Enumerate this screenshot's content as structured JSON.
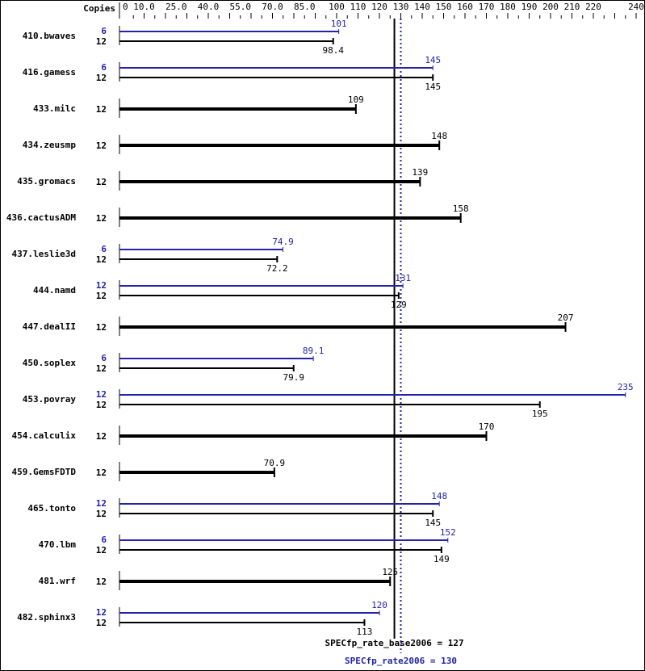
{
  "chart_data": {
    "type": "bar",
    "orientation": "horizontal",
    "axis_header": "Copies",
    "xlim": [
      0,
      240
    ],
    "ticks": [
      0,
      10.0,
      25.0,
      40.0,
      55.0,
      70.0,
      85.0,
      100,
      110,
      120,
      130,
      140,
      150,
      160,
      170,
      180,
      190,
      200,
      210,
      220,
      240
    ],
    "tick_labels": [
      "0",
      "10.0",
      "25.0",
      "40.0",
      "55.0",
      "70.0",
      "85.0",
      "100",
      "110",
      "120",
      "130",
      "140",
      "150",
      "160",
      "170",
      "180",
      "190",
      "200",
      "210",
      "220",
      "240"
    ],
    "colors": {
      "base": "#000000",
      "peak": "#2222aa"
    },
    "benchmarks": [
      {
        "name": "410.bwaves",
        "peak_copies": "6",
        "peak": 101,
        "base_copies": "12",
        "base": 98.4
      },
      {
        "name": "416.gamess",
        "peak_copies": "6",
        "peak": 145,
        "base_copies": "12",
        "base": 145
      },
      {
        "name": "433.milc",
        "base_copies": "12",
        "base": 109
      },
      {
        "name": "434.zeusmp",
        "base_copies": "12",
        "base": 148
      },
      {
        "name": "435.gromacs",
        "base_copies": "12",
        "base": 139
      },
      {
        "name": "436.cactusADM",
        "base_copies": "12",
        "base": 158
      },
      {
        "name": "437.leslie3d",
        "peak_copies": "6",
        "peak": 74.9,
        "base_copies": "12",
        "base": 72.2
      },
      {
        "name": "444.namd",
        "peak_copies": "12",
        "peak": 131,
        "base_copies": "12",
        "base": 129
      },
      {
        "name": "447.dealII",
        "base_copies": "12",
        "base": 207
      },
      {
        "name": "450.soplex",
        "peak_copies": "6",
        "peak": 89.1,
        "base_copies": "12",
        "base": 79.9
      },
      {
        "name": "453.povray",
        "peak_copies": "12",
        "peak": 235,
        "base_copies": "12",
        "base": 195
      },
      {
        "name": "454.calculix",
        "base_copies": "12",
        "base": 170
      },
      {
        "name": "459.GemsFDTD",
        "base_copies": "12",
        "base": 70.9
      },
      {
        "name": "465.tonto",
        "peak_copies": "12",
        "peak": 148,
        "base_copies": "12",
        "base": 145
      },
      {
        "name": "470.lbm",
        "peak_copies": "6",
        "peak": 152,
        "base_copies": "12",
        "base": 149
      },
      {
        "name": "481.wrf",
        "base_copies": "12",
        "base": 125
      },
      {
        "name": "482.sphinx3",
        "peak_copies": "12",
        "peak": 120,
        "base_copies": "12",
        "base": 113
      }
    ],
    "reference_lines": [
      {
        "label": "SPECfp_rate_base2006 = 127",
        "value": 127,
        "style": "solid"
      },
      {
        "label": "SPECfp_rate2006 = 130",
        "value": 130,
        "style": "dotted"
      }
    ]
  }
}
